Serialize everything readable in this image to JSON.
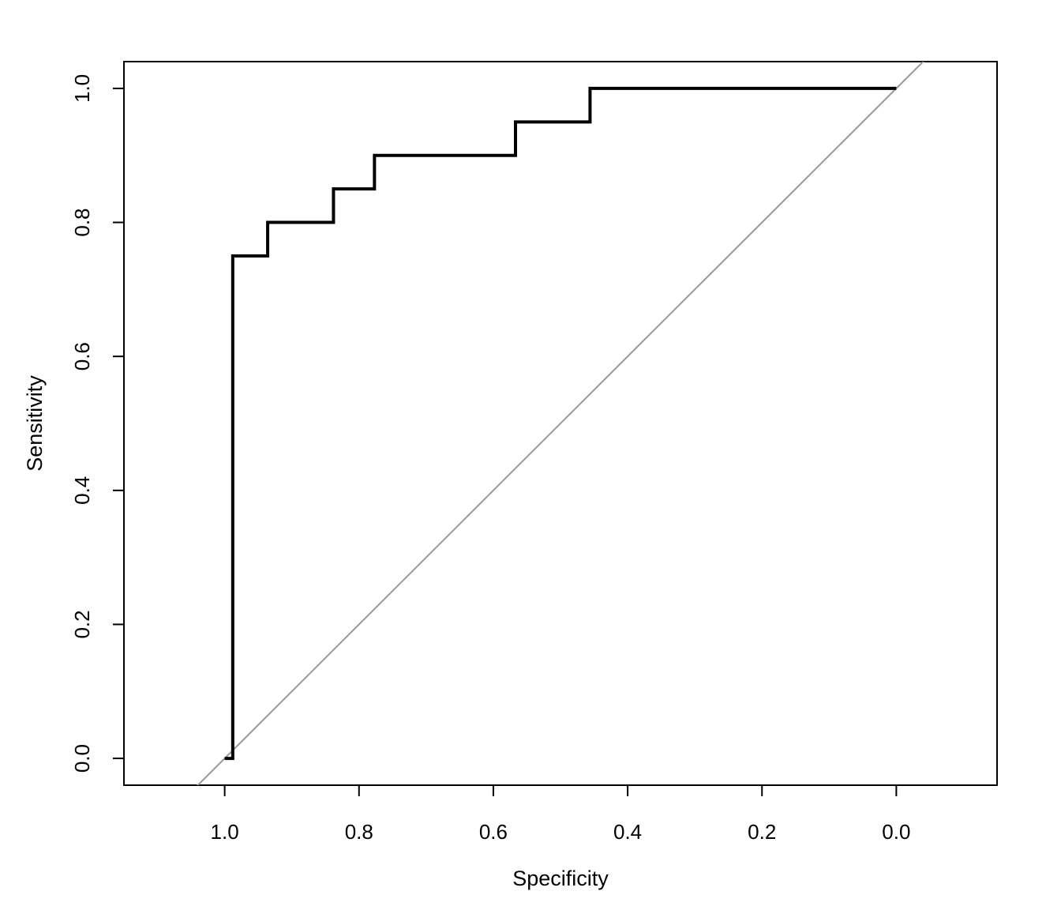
{
  "chart_data": {
    "type": "line",
    "xlabel": "Specificity",
    "ylabel": "Sensitivity",
    "xlim": [
      1.15,
      -0.15
    ],
    "ylim": [
      -0.04,
      1.04
    ],
    "x_axis_reversed": true,
    "x_ticks": [
      1.0,
      0.8,
      0.6,
      0.4,
      0.2,
      0.0
    ],
    "x_tick_labels": [
      "1.0",
      "0.8",
      "0.6",
      "0.4",
      "0.2",
      "0.0"
    ],
    "y_ticks": [
      0.0,
      0.2,
      0.4,
      0.6,
      0.8,
      1.0
    ],
    "y_tick_labels": [
      "0.0",
      "0.2",
      "0.4",
      "0.6",
      "0.8",
      "1.0"
    ],
    "grid": false,
    "series": [
      {
        "role": "roc-curve",
        "color": "#000000",
        "x": [
          1.0,
          0.988,
          0.988,
          0.936,
          0.936,
          0.838,
          0.838,
          0.777,
          0.777,
          0.567,
          0.567,
          0.456,
          0.456,
          0.0
        ],
        "y": [
          0.0,
          0.0,
          0.75,
          0.75,
          0.8,
          0.8,
          0.85,
          0.85,
          0.9,
          0.9,
          0.95,
          0.95,
          1.0,
          1.0
        ]
      },
      {
        "role": "reference-diagonal",
        "color": "#999999",
        "x": [
          1.15,
          -0.15
        ],
        "y": [
          -0.15,
          1.15
        ]
      }
    ]
  }
}
